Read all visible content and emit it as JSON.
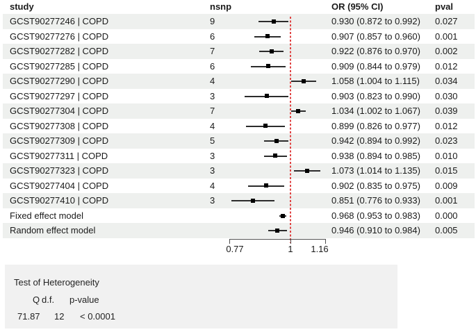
{
  "columns": {
    "study": "study",
    "nsnp": "nsnp",
    "or_ci": "OR (95% CI)",
    "pval": "pval"
  },
  "chart_data": {
    "type": "forest",
    "x_scale": "log",
    "xlim": [
      0.77,
      1.16
    ],
    "x_ticks": [
      "0.77",
      "1",
      "1.16"
    ],
    "ref_line": 1,
    "legend_position": "none",
    "grid": false,
    "rows": [
      {
        "label": "GCST90277246 | COPD",
        "nsnp": "9",
        "or": 0.93,
        "lo": 0.872,
        "hi": 0.992,
        "pval": "0.027"
      },
      {
        "label": "GCST90277276 | COPD",
        "nsnp": "6",
        "or": 0.907,
        "lo": 0.857,
        "hi": 0.96,
        "pval": "0.001"
      },
      {
        "label": "GCST90277282 | COPD",
        "nsnp": "7",
        "or": 0.922,
        "lo": 0.876,
        "hi": 0.97,
        "pval": "0.002"
      },
      {
        "label": "GCST90277285 | COPD",
        "nsnp": "6",
        "or": 0.909,
        "lo": 0.844,
        "hi": 0.979,
        "pval": "0.012"
      },
      {
        "label": "GCST90277290 | COPD",
        "nsnp": "4",
        "or": 1.058,
        "lo": 1.004,
        "hi": 1.115,
        "pval": "0.034"
      },
      {
        "label": "GCST90277297 | COPD",
        "nsnp": "3",
        "or": 0.903,
        "lo": 0.823,
        "hi": 0.99,
        "pval": "0.030"
      },
      {
        "label": "GCST90277304 | COPD",
        "nsnp": "7",
        "or": 1.034,
        "lo": 1.002,
        "hi": 1.067,
        "pval": "0.039"
      },
      {
        "label": "GCST90277308 | COPD",
        "nsnp": "4",
        "or": 0.899,
        "lo": 0.826,
        "hi": 0.977,
        "pval": "0.012"
      },
      {
        "label": "GCST90277309 | COPD",
        "nsnp": "5",
        "or": 0.942,
        "lo": 0.894,
        "hi": 0.992,
        "pval": "0.023"
      },
      {
        "label": "GCST90277311 | COPD",
        "nsnp": "3",
        "or": 0.938,
        "lo": 0.894,
        "hi": 0.985,
        "pval": "0.010"
      },
      {
        "label": "GCST90277323 | COPD",
        "nsnp": "3",
        "or": 1.073,
        "lo": 1.014,
        "hi": 1.135,
        "pval": "0.015"
      },
      {
        "label": "GCST90277404 | COPD",
        "nsnp": "4",
        "or": 0.902,
        "lo": 0.835,
        "hi": 0.975,
        "pval": "0.009"
      },
      {
        "label": "GCST90277410 | COPD",
        "nsnp": "3",
        "or": 0.851,
        "lo": 0.776,
        "hi": 0.933,
        "pval": "0.001"
      },
      {
        "label": "Fixed effect model",
        "nsnp": null,
        "or": 0.968,
        "lo": 0.953,
        "hi": 0.983,
        "pval": "0.000"
      },
      {
        "label": "Random effect model",
        "nsnp": null,
        "or": 0.946,
        "lo": 0.91,
        "hi": 0.984,
        "pval": "0.005"
      }
    ]
  },
  "heterogeneity": {
    "title": "Test of Heterogeneity",
    "headers": [
      "Q",
      "d.f.",
      "p-value"
    ],
    "values": [
      "71.87",
      "12",
      "< 0.0001"
    ]
  },
  "colors": {
    "ref_line": "#e04343",
    "stripe": "#eef0ee",
    "het_box": "#f1f1f1",
    "marker": "#000000",
    "ci_line": "#2b2b2b"
  }
}
